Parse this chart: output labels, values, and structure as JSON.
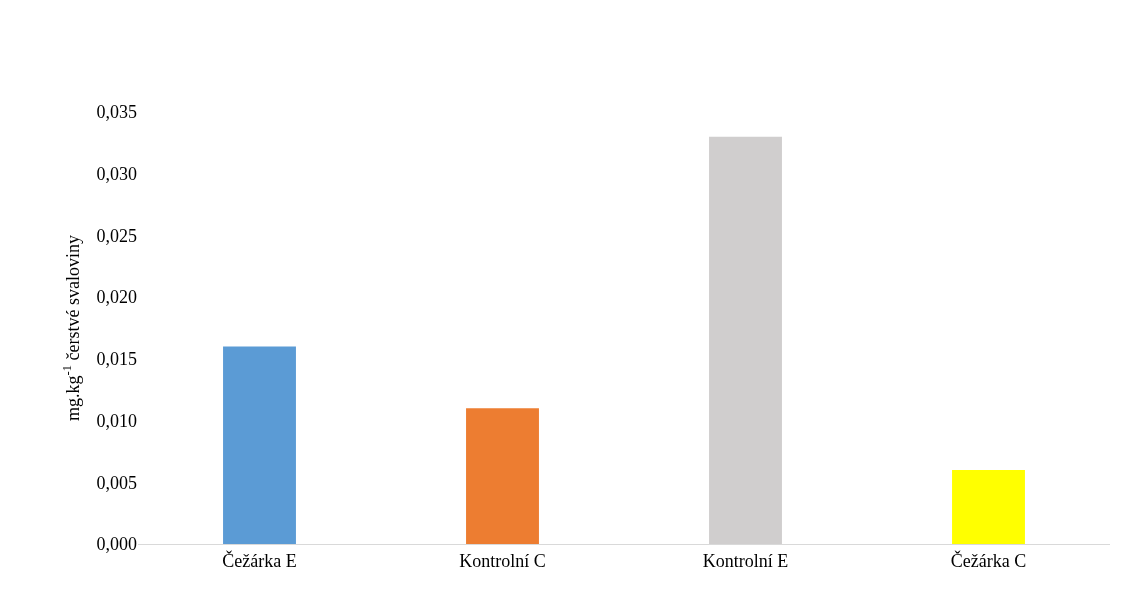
{
  "chart_data": {
    "type": "bar",
    "ylabel": "mg.kg$^{-1}$ čerstvé svaloviny",
    "categories": [
      "Čežárka E",
      "Kontrolní C",
      "Kontrolní E",
      "Čežárka C"
    ],
    "values": [
      0.016,
      0.011,
      0.033,
      0.006
    ],
    "colors": [
      "#5b9bd5",
      "#ed7d31",
      "#d0cece",
      "#ffff00"
    ],
    "ylim": [
      0,
      0.035
    ],
    "yticks": [
      {
        "value": 0,
        "label": "0,000"
      },
      {
        "value": 0.005,
        "label": "0,005"
      },
      {
        "value": 0.01,
        "label": "0,010"
      },
      {
        "value": 0.015,
        "label": "0,015"
      },
      {
        "value": 0.02,
        "label": "0,020"
      },
      {
        "value": 0.025,
        "label": "0,025"
      },
      {
        "value": 0.03,
        "label": "0,030"
      },
      {
        "value": 0.035,
        "label": "0,035"
      }
    ],
    "grid": false
  }
}
